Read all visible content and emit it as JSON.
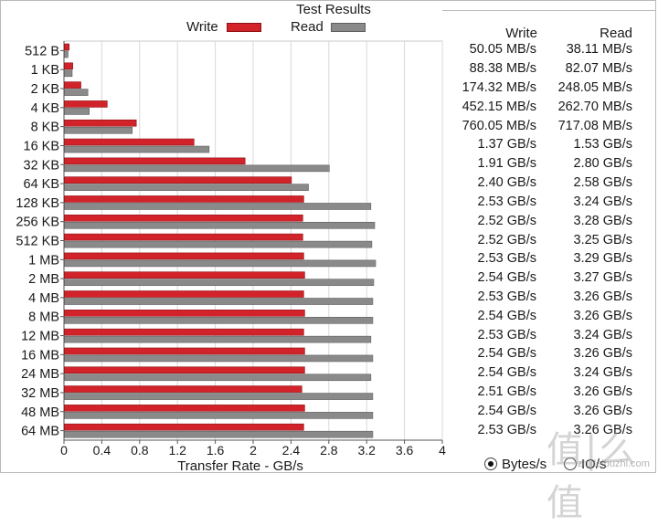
{
  "window": {
    "title": "Test Results"
  },
  "legend": {
    "write_label": "Write",
    "read_label": "Read"
  },
  "colors": {
    "write": "#d2232a",
    "read": "#8a8a8a",
    "grid": "#d9d9d9",
    "axis": "#555555"
  },
  "columns": {
    "write_header": "Write",
    "read_header": "Read"
  },
  "results": [
    {
      "size": "512 B",
      "write": "50.05 MB/s",
      "read": "38.11 MB/s"
    },
    {
      "size": "1 KB",
      "write": "88.38 MB/s",
      "read": "82.07 MB/s"
    },
    {
      "size": "2 KB",
      "write": "174.32 MB/s",
      "read": "248.05 MB/s"
    },
    {
      "size": "4 KB",
      "write": "452.15 MB/s",
      "read": "262.70 MB/s"
    },
    {
      "size": "8 KB",
      "write": "760.05 MB/s",
      "read": "717.08 MB/s"
    },
    {
      "size": "16 KB",
      "write": "1.37 GB/s",
      "read": "1.53 GB/s"
    },
    {
      "size": "32 KB",
      "write": "1.91 GB/s",
      "read": "2.80 GB/s"
    },
    {
      "size": "64 KB",
      "write": "2.40 GB/s",
      "read": "2.58 GB/s"
    },
    {
      "size": "128 KB",
      "write": "2.53 GB/s",
      "read": "3.24 GB/s"
    },
    {
      "size": "256 KB",
      "write": "2.52 GB/s",
      "read": "3.28 GB/s"
    },
    {
      "size": "512 KB",
      "write": "2.52 GB/s",
      "read": "3.25 GB/s"
    },
    {
      "size": "1 MB",
      "write": "2.53 GB/s",
      "read": "3.29 GB/s"
    },
    {
      "size": "2 MB",
      "write": "2.54 GB/s",
      "read": "3.27 GB/s"
    },
    {
      "size": "4 MB",
      "write": "2.53 GB/s",
      "read": "3.26 GB/s"
    },
    {
      "size": "8 MB",
      "write": "2.54 GB/s",
      "read": "3.26 GB/s"
    },
    {
      "size": "12 MB",
      "write": "2.53 GB/s",
      "read": "3.24 GB/s"
    },
    {
      "size": "16 MB",
      "write": "2.54 GB/s",
      "read": "3.26 GB/s"
    },
    {
      "size": "24 MB",
      "write": "2.54 GB/s",
      "read": "3.24 GB/s"
    },
    {
      "size": "32 MB",
      "write": "2.51 GB/s",
      "read": "3.26 GB/s"
    },
    {
      "size": "48 MB",
      "write": "2.54 GB/s",
      "read": "3.26 GB/s"
    },
    {
      "size": "64 MB",
      "write": "2.53 GB/s",
      "read": "3.26 GB/s"
    }
  ],
  "chart_data": {
    "type": "bar",
    "orientation": "horizontal",
    "categories": [
      "512 B",
      "1 KB",
      "2 KB",
      "4 KB",
      "8 KB",
      "16 KB",
      "32 KB",
      "64 KB",
      "128 KB",
      "256 KB",
      "512 KB",
      "1 MB",
      "2 MB",
      "4 MB",
      "8 MB",
      "12 MB",
      "16 MB",
      "24 MB",
      "32 MB",
      "48 MB",
      "64 MB"
    ],
    "series": [
      {
        "name": "Write",
        "values": [
          0.05005,
          0.08838,
          0.17432,
          0.45215,
          0.76005,
          1.37,
          1.91,
          2.4,
          2.53,
          2.52,
          2.52,
          2.53,
          2.54,
          2.53,
          2.54,
          2.53,
          2.54,
          2.54,
          2.51,
          2.54,
          2.53
        ]
      },
      {
        "name": "Read",
        "values": [
          0.03811,
          0.08207,
          0.24805,
          0.2627,
          0.71708,
          1.53,
          2.8,
          2.58,
          3.24,
          3.28,
          3.25,
          3.29,
          3.27,
          3.26,
          3.26,
          3.24,
          3.26,
          3.24,
          3.26,
          3.26,
          3.26
        ]
      }
    ],
    "xlabel": "Transfer Rate - GB/s",
    "xlim": [
      0,
      4
    ],
    "xticks": [
      "0",
      "0.4",
      "0.8",
      "1.2",
      "1.6",
      "2",
      "2.4",
      "2.8",
      "3.2",
      "3.6",
      "4"
    ],
    "grid": true,
    "legend_position": "top"
  },
  "display_units": {
    "options": [
      {
        "label": "Bytes/s",
        "selected": true
      },
      {
        "label": "IO/s",
        "selected": false
      }
    ]
  },
  "watermark": {
    "text": "值|么值",
    "sub": "zhidelbuzhi.com"
  }
}
